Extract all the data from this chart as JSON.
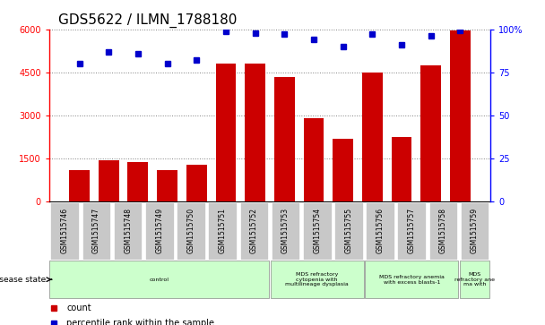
{
  "title": "GDS5622 / ILMN_1788180",
  "samples": [
    "GSM1515746",
    "GSM1515747",
    "GSM1515748",
    "GSM1515749",
    "GSM1515750",
    "GSM1515751",
    "GSM1515752",
    "GSM1515753",
    "GSM1515754",
    "GSM1515755",
    "GSM1515756",
    "GSM1515757",
    "GSM1515758",
    "GSM1515759"
  ],
  "counts": [
    1100,
    1430,
    1380,
    1100,
    1280,
    4800,
    4800,
    4350,
    2900,
    2200,
    4500,
    2250,
    4750,
    5950
  ],
  "percentiles": [
    80,
    87,
    86,
    80,
    82,
    99,
    98,
    97,
    94,
    90,
    97,
    91,
    96,
    99.5
  ],
  "ylim_left": [
    0,
    6000
  ],
  "ylim_right": [
    0,
    100
  ],
  "yticks_left": [
    0,
    1500,
    3000,
    4500,
    6000
  ],
  "yticks_right": [
    0,
    25,
    50,
    75,
    100
  ],
  "ytick_labels_right": [
    "0",
    "25",
    "50",
    "75",
    "100%"
  ],
  "bar_color": "#cc0000",
  "dot_color": "#0000cc",
  "xtick_bg_color": "#c8c8c8",
  "disease_groups": [
    {
      "label": "control",
      "start": 0,
      "end": 7,
      "color": "#ccffcc"
    },
    {
      "label": "MDS refractory\ncytopenia with\nmultilineage dysplasia",
      "start": 7,
      "end": 10,
      "color": "#ccffcc"
    },
    {
      "label": "MDS refractory anemia\nwith excess blasts-1",
      "start": 10,
      "end": 13,
      "color": "#ccffcc"
    },
    {
      "label": "MDS\nrefractory ane\nma with",
      "start": 13,
      "end": 14,
      "color": "#ccffcc"
    }
  ],
  "disease_state_label": "disease state",
  "legend_count_label": "count",
  "legend_pct_label": "percentile rank within the sample",
  "title_fontsize": 11,
  "tick_fontsize": 7,
  "xtick_fontsize": 5.5
}
